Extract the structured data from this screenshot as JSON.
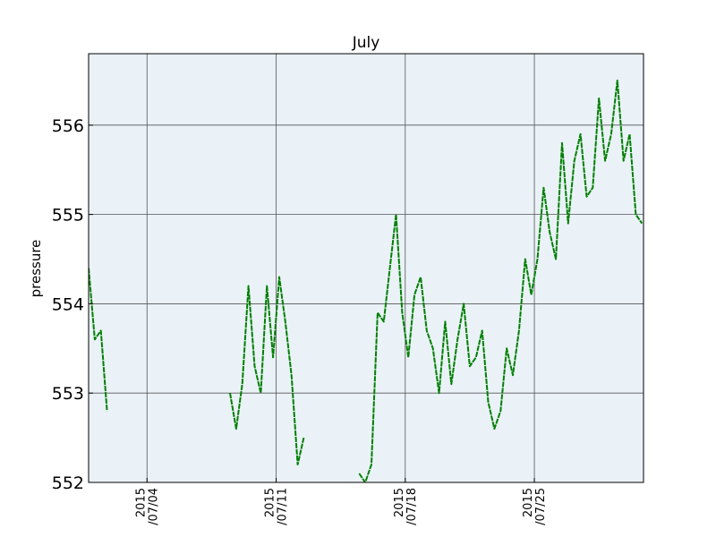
{
  "chart_data": {
    "type": "line",
    "title": "July",
    "ylabel": "pressure",
    "x": [
      "2015-06-30T20:00",
      "2015-07-01T04:00",
      "2015-07-01T12:00",
      "2015-07-01T20:00",
      "2015-07-02T04:00",
      "2015-07-02T12:00",
      "2015-07-02T20:00",
      "2015-07-03T04:00",
      "2015-07-03T12:00",
      "2015-07-03T20:00",
      "2015-07-04T04:00",
      "2015-07-04T12:00",
      "2015-07-04T20:00",
      "2015-07-05T04:00",
      "2015-07-05T12:00",
      "2015-07-05T20:00",
      "2015-07-06T04:00",
      "2015-07-06T12:00",
      "2015-07-06T20:00",
      "2015-07-07T04:00",
      "2015-07-07T12:00",
      "2015-07-07T20:00",
      "2015-07-08T04:00",
      "2015-07-08T12:00",
      "2015-07-08T20:00",
      "2015-07-09T04:00",
      "2015-07-09T12:00",
      "2015-07-09T20:00",
      "2015-07-10T04:00",
      "2015-07-10T12:00",
      "2015-07-10T20:00",
      "2015-07-11T04:00",
      "2015-07-11T12:00",
      "2015-07-11T20:00",
      "2015-07-12T04:00",
      "2015-07-12T12:00",
      "2015-07-12T20:00",
      "2015-07-13T04:00",
      "2015-07-13T12:00",
      "2015-07-13T20:00",
      "2015-07-14T04:00",
      "2015-07-14T12:00",
      "2015-07-14T20:00",
      "2015-07-15T04:00",
      "2015-07-15T12:00",
      "2015-07-15T20:00",
      "2015-07-16T04:00",
      "2015-07-16T12:00",
      "2015-07-16T20:00",
      "2015-07-17T04:00",
      "2015-07-17T12:00",
      "2015-07-17T20:00",
      "2015-07-18T04:00",
      "2015-07-18T12:00",
      "2015-07-18T20:00",
      "2015-07-19T04:00",
      "2015-07-19T12:00",
      "2015-07-19T20:00",
      "2015-07-20T04:00",
      "2015-07-20T12:00",
      "2015-07-20T20:00",
      "2015-07-21T04:00",
      "2015-07-21T12:00",
      "2015-07-21T20:00",
      "2015-07-22T04:00",
      "2015-07-22T12:00",
      "2015-07-22T20:00",
      "2015-07-23T04:00",
      "2015-07-23T12:00",
      "2015-07-23T20:00",
      "2015-07-24T04:00",
      "2015-07-24T12:00",
      "2015-07-24T20:00",
      "2015-07-25T04:00",
      "2015-07-25T12:00",
      "2015-07-25T20:00",
      "2015-07-26T04:00",
      "2015-07-26T12:00",
      "2015-07-26T20:00",
      "2015-07-27T04:00",
      "2015-07-27T12:00",
      "2015-07-27T20:00",
      "2015-07-28T04:00",
      "2015-07-28T12:00",
      "2015-07-28T20:00",
      "2015-07-29T04:00",
      "2015-07-29T12:00",
      "2015-07-29T20:00",
      "2015-07-30T04:00",
      "2015-07-30T12:00",
      "2015-07-30T20:00"
    ],
    "series": [
      {
        "name": "pressure",
        "color": "#008000",
        "values": [
          554.4,
          553.6,
          553.7,
          552.8,
          null,
          null,
          null,
          null,
          null,
          null,
          null,
          null,
          null,
          null,
          null,
          null,
          null,
          null,
          null,
          null,
          null,
          null,
          null,
          553.0,
          552.6,
          553.1,
          554.2,
          553.3,
          553.0,
          554.2,
          553.4,
          554.3,
          553.8,
          553.2,
          552.2,
          552.5,
          null,
          null,
          null,
          null,
          null,
          null,
          null,
          null,
          552.1,
          552.0,
          552.2,
          553.9,
          553.8,
          554.4,
          555.0,
          553.9,
          553.4,
          554.1,
          554.3,
          553.7,
          553.5,
          553.0,
          553.8,
          553.1,
          553.6,
          554.0,
          553.3,
          553.4,
          553.7,
          552.9,
          552.6,
          552.8,
          553.5,
          553.2,
          553.7,
          554.5,
          554.1,
          554.5,
          555.3,
          554.8,
          554.5,
          555.8,
          554.9,
          555.6,
          555.9,
          555.2,
          555.3,
          556.3,
          555.6,
          555.9,
          556.5,
          555.6,
          555.9,
          555.0,
          554.9
        ]
      }
    ],
    "xlim": [
      "2015-06-30T20:00",
      "2015-07-30T22:00"
    ],
    "xticks": [
      {
        "value": "2015-07-04T00:00",
        "label": "2015\n/07/04"
      },
      {
        "value": "2015-07-11T00:00",
        "label": "2015\n/07/11"
      },
      {
        "value": "2015-07-18T00:00",
        "label": "2015\n/07/18"
      },
      {
        "value": "2015-07-25T00:00",
        "label": "2015\n/07/25"
      }
    ],
    "ylim": [
      552,
      556.8
    ],
    "yticks": [
      552,
      553,
      554,
      555,
      556
    ],
    "grid": true
  }
}
